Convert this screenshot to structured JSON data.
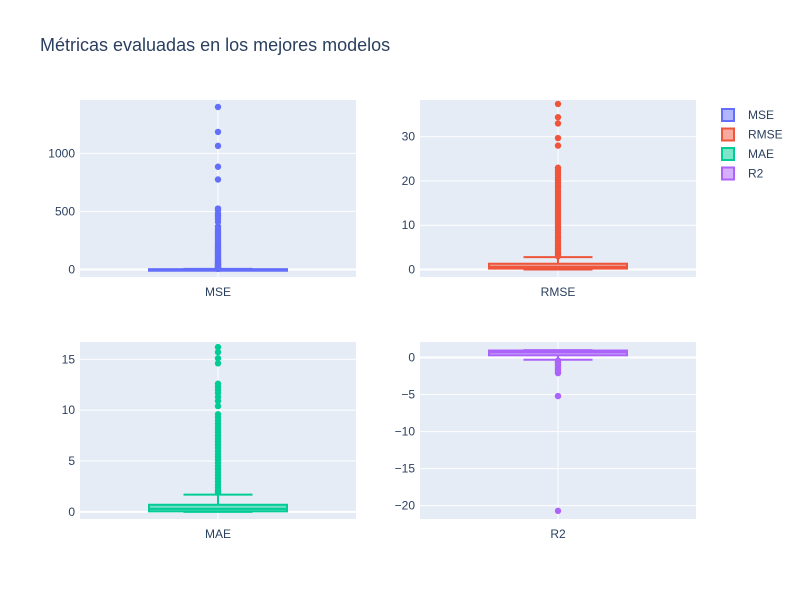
{
  "chart_data": {
    "type": "box",
    "title": "Métricas evaluadas en los mejores modelos",
    "legend_position": "top-right",
    "grid": true,
    "colors": {
      "plot_bg": "#e5ecf6",
      "grid": "#ffffff",
      "text": "#2a3f5f"
    },
    "series": [
      {
        "name": "MSE",
        "color": "#636efa",
        "category": "MSE",
        "yticks": [
          0,
          500,
          1000
        ],
        "ylim": [
          -65,
          1460
        ],
        "box": {
          "q1": 0.1,
          "median": 0.5,
          "q3": 2.0,
          "lower_fence": 0.0,
          "upper_fence": 4.5
        },
        "outliers": [
          1400,
          1185,
          1065,
          885,
          775,
          525,
          510,
          480,
          460,
          435,
          410,
          370,
          350,
          330,
          310,
          295,
          280,
          265,
          250,
          238,
          225,
          212,
          200,
          188,
          176,
          165,
          154,
          143,
          132,
          121,
          110,
          100,
          92,
          84,
          76,
          68,
          60,
          53,
          46,
          40,
          34,
          28,
          22,
          17,
          12,
          8,
          6,
          5
        ]
      },
      {
        "name": "RMSE",
        "color": "#ef553b",
        "category": "RMSE",
        "yticks": [
          0,
          10,
          20,
          30
        ],
        "ylim": [
          -1.7,
          38.3
        ],
        "box": {
          "q1": 0.2,
          "median": 0.6,
          "q3": 1.3,
          "lower_fence": 0.0,
          "upper_fence": 2.8
        },
        "outliers": [
          37.4,
          34.4,
          33.0,
          29.7,
          28.0,
          23.0,
          22.5,
          22.0,
          21.4,
          20.8,
          20.2,
          19.6,
          19.0,
          18.4,
          17.8,
          17.2,
          16.6,
          16.0,
          15.4,
          14.8,
          14.2,
          13.6,
          13.0,
          12.4,
          11.8,
          11.2,
          10.6,
          10.0,
          9.4,
          8.8,
          8.2,
          7.6,
          7.0,
          6.4,
          5.8,
          5.2,
          4.6,
          4.0,
          3.5,
          3.0
        ]
      },
      {
        "name": "MAE",
        "color": "#00cc96",
        "category": "MAE",
        "yticks": [
          0,
          5,
          10,
          15
        ],
        "ylim": [
          -0.7,
          16.7
        ],
        "box": {
          "q1": 0.05,
          "median": 0.3,
          "q3": 0.7,
          "lower_fence": 0.0,
          "upper_fence": 1.7
        },
        "outliers": [
          16.2,
          15.7,
          15.1,
          14.6,
          12.6,
          12.3,
          12.0,
          11.7,
          11.3,
          10.9,
          10.4,
          9.6,
          9.3,
          9.0,
          8.7,
          8.4,
          8.1,
          7.8,
          7.5,
          7.2,
          6.9,
          6.6,
          6.3,
          6.0,
          5.7,
          5.4,
          5.1,
          4.8,
          4.5,
          4.2,
          3.9,
          3.6,
          3.3,
          3.0,
          2.7,
          2.4,
          2.1,
          1.9
        ]
      },
      {
        "name": "R2",
        "color": "#ab63fa",
        "category": "R2",
        "yticks": [
          0,
          -5,
          -10,
          -15,
          -20
        ],
        "ytick_labels": [
          "0",
          "−5",
          "−10",
          "−15",
          "−20"
        ],
        "ylim": [
          -21.8,
          2.1
        ],
        "box": {
          "q1": 0.3,
          "median": 0.7,
          "q3": 0.95,
          "lower_fence": -0.3,
          "upper_fence": 1.0
        },
        "outliers": [
          -0.4,
          -0.6,
          -0.8,
          -1.0,
          -1.2,
          -1.4,
          -1.6,
          -1.8,
          -2.0,
          -2.1,
          -5.2,
          -20.7
        ]
      }
    ]
  }
}
